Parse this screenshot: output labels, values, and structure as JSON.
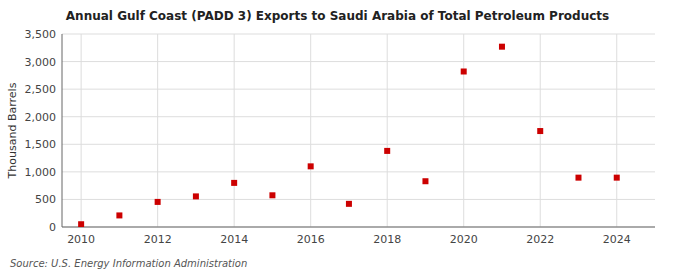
{
  "chart_data": {
    "type": "scatter",
    "title": "Annual Gulf Coast (PADD 3) Exports to Saudi Arabia of Total Petroleum Products",
    "y_label": "Thousand Barrels",
    "source": "Source: U.S. Energy Information Administration",
    "color": "#cc0000",
    "marker": "square",
    "x": [
      2010,
      2011,
      2012,
      2013,
      2014,
      2015,
      2016,
      2017,
      2018,
      2019,
      2020,
      2021,
      2022,
      2023,
      2024
    ],
    "values": [
      50,
      210,
      455,
      555,
      800,
      575,
      1100,
      420,
      1380,
      830,
      2820,
      3270,
      1740,
      895,
      895
    ],
    "xlim": [
      2009.5,
      2025.0
    ],
    "xticks": [
      2010,
      2012,
      2014,
      2016,
      2018,
      2020,
      2022,
      2024
    ],
    "ylim": [
      0,
      3500
    ],
    "yticks": [
      0,
      500,
      {
        "value": 1000,
        "label": "1,000"
      },
      {
        "value": 1500,
        "label": "1,500"
      },
      {
        "value": 2000,
        "label": "2,000"
      },
      {
        "value": 2500,
        "label": "2,500"
      },
      {
        "value": 3000,
        "label": "3,000"
      },
      {
        "value": 3500,
        "label": "3,500"
      }
    ],
    "grid": true
  }
}
